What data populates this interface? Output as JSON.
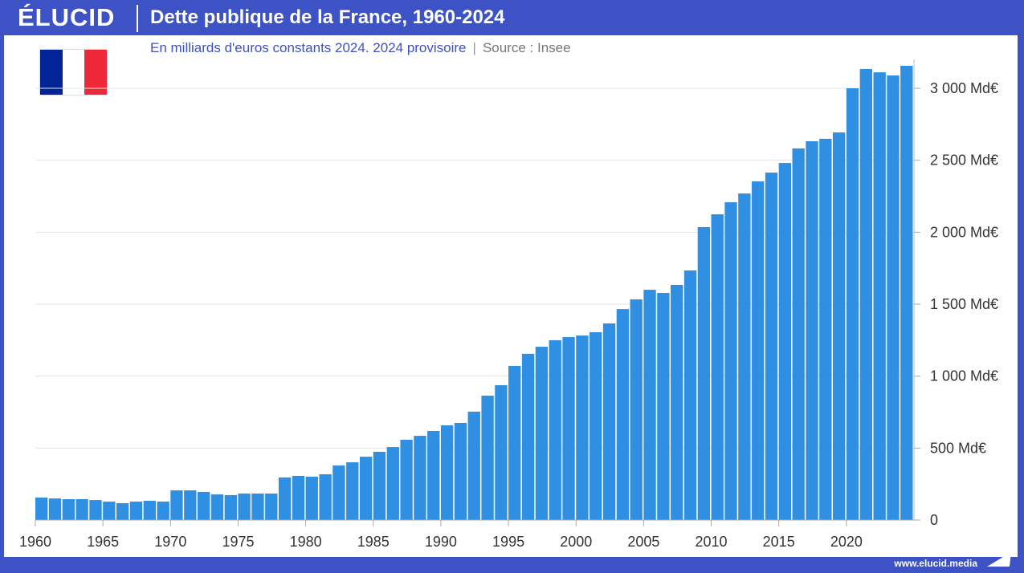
{
  "header": {
    "logo": "ÉLUCID",
    "title": "Dette publique de la France, 1960-2024"
  },
  "subtitle": {
    "text": "En milliards d'euros constants 2024. 2024 provisoire",
    "source": "Source : Insee"
  },
  "flag": {
    "colors": [
      "#002395",
      "#ffffff",
      "#ed2939"
    ]
  },
  "footer": {
    "url": "www.elucid.media"
  },
  "colors": {
    "bar": "#2f8fe3",
    "brand": "#3d52c4"
  },
  "chart_data": {
    "type": "bar",
    "title": "Dette publique de la France, 1960-2024",
    "xlabel": "",
    "ylabel": "",
    "ylim": [
      0,
      3200
    ],
    "y_axis_position": "right",
    "grid": true,
    "yticks": [
      0,
      500,
      1000,
      1500,
      2000,
      2500,
      3000
    ],
    "ytick_labels": [
      "0",
      "500 Md€",
      "1 000 Md€",
      "1 500 Md€",
      "2 000 Md€",
      "2 500 Md€",
      "3 000 Md€"
    ],
    "xtick_labels": [
      "1960",
      "1965",
      "1970",
      "1975",
      "1980",
      "1985",
      "1990",
      "1995",
      "2000",
      "2005",
      "2010",
      "2015",
      "2020"
    ],
    "categories": [
      1960,
      1961,
      1962,
      1963,
      1964,
      1965,
      1966,
      1967,
      1968,
      1969,
      1970,
      1971,
      1972,
      1973,
      1974,
      1975,
      1976,
      1977,
      1978,
      1979,
      1980,
      1981,
      1982,
      1983,
      1984,
      1985,
      1986,
      1987,
      1988,
      1989,
      1990,
      1991,
      1992,
      1993,
      1994,
      1995,
      1996,
      1997,
      1998,
      1999,
      2000,
      2001,
      2002,
      2003,
      2004,
      2005,
      2006,
      2007,
      2008,
      2009,
      2010,
      2011,
      2012,
      2013,
      2014,
      2015,
      2016,
      2017,
      2018,
      2019,
      2020,
      2021,
      2022,
      2023,
      2024
    ],
    "values": [
      156,
      150,
      145,
      145,
      139,
      128,
      117,
      128,
      134,
      128,
      206,
      206,
      195,
      178,
      173,
      184,
      184,
      184,
      296,
      307,
      301,
      318,
      379,
      401,
      440,
      474,
      507,
      558,
      585,
      619,
      658,
      675,
      753,
      864,
      937,
      1071,
      1155,
      1204,
      1249,
      1271,
      1282,
      1305,
      1366,
      1466,
      1533,
      1600,
      1578,
      1634,
      1734,
      2035,
      2124,
      2208,
      2269,
      2353,
      2414,
      2481,
      2582,
      2632,
      2649,
      2693,
      3000,
      3134,
      3111,
      3089,
      3156
    ]
  }
}
